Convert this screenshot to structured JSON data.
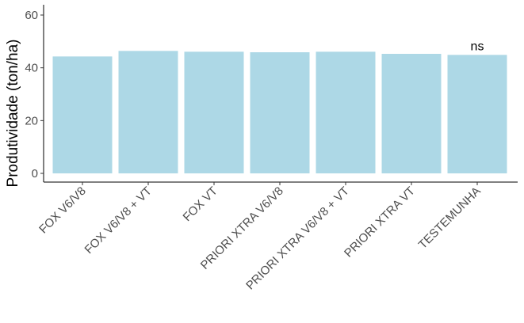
{
  "chart_data": {
    "type": "bar",
    "categories": [
      "FOX V6/V8",
      "FOX V6/V8 + VT",
      "FOX VT",
      "PRIORI XTRA V6/V8",
      "PRIORI XTRA V6/V8 + VT",
      "PRIORI XTRA VT",
      "TESTEMUNHA"
    ],
    "values": [
      44.3,
      46.4,
      46.1,
      45.9,
      46.1,
      45.3,
      44.9
    ],
    "title": "",
    "xlabel": "",
    "ylabel": "Produtividade (ton/ha)",
    "ylim": [
      0,
      62
    ],
    "yticks": [
      0,
      20,
      40,
      60
    ],
    "grid": false,
    "bar_color": "#add8e6",
    "annotations": [
      {
        "text": "ns",
        "category": "TESTEMUNHA"
      }
    ]
  }
}
